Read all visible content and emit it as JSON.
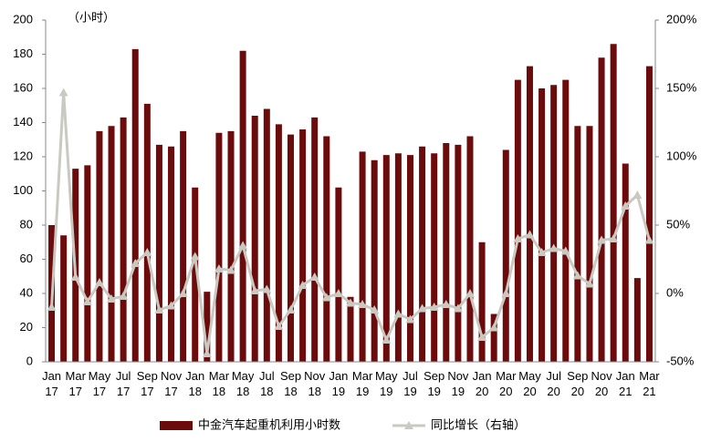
{
  "chart_data": {
    "type": "bar-line",
    "annotation": "（小时）",
    "categories": [
      "Jan 17",
      null,
      "Mar 17",
      null,
      "May 17",
      null,
      "Jul 17",
      null,
      "Sep 17",
      null,
      "Nov 17",
      null,
      "Jan 18",
      null,
      "Mar 18",
      null,
      "May 18",
      null,
      "Jul 18",
      null,
      "Sep 18",
      null,
      "Nov 18",
      null,
      "Jan 19",
      null,
      "Mar 19",
      null,
      "May 19",
      null,
      "Jul 19",
      null,
      "Sep 19",
      null,
      "Nov 19",
      null,
      "Jan 20",
      null,
      "Mar 20",
      null,
      "May 20",
      null,
      "Jul 20",
      null,
      "Sep 20",
      null,
      "Nov 20",
      null,
      "Jan 21",
      null,
      "Mar 21"
    ],
    "series": [
      {
        "name": "中金汽车起重机利用小时数",
        "type": "bar",
        "color": "#6b0b0b",
        "values": [
          80,
          74,
          113,
          115,
          135,
          138,
          143,
          183,
          151,
          127,
          126,
          135,
          102,
          41,
          134,
          135,
          182,
          144,
          148,
          139,
          133,
          136,
          143,
          132,
          102,
          38,
          123,
          118,
          121,
          122,
          121,
          126,
          122,
          128,
          127,
          132,
          70,
          28,
          124,
          165,
          173,
          160,
          162,
          165,
          138,
          138,
          178,
          186,
          116,
          49,
          173
        ]
      },
      {
        "name": "同比增长（右轴）",
        "type": "line",
        "axis": "y2",
        "color": "#c9c9c1",
        "values": [
          -10,
          147,
          12,
          -6,
          8,
          -4,
          -2,
          22,
          30,
          -12,
          -9,
          0,
          27,
          -44,
          18,
          17,
          35,
          2,
          3,
          -24,
          -12,
          6,
          12,
          -3,
          0,
          -7,
          -8,
          -12,
          -34,
          -15,
          -19,
          -11,
          -10,
          -8,
          -11,
          0,
          -32,
          -25,
          0,
          40,
          43,
          30,
          33,
          31,
          13,
          7,
          39,
          40,
          64,
          72,
          39
        ]
      }
    ],
    "ylim": [
      0,
      200
    ],
    "yticks": [
      0,
      20,
      40,
      60,
      80,
      100,
      120,
      140,
      160,
      180,
      200
    ],
    "y2lim": [
      -50,
      200
    ],
    "y2ticks": [
      {
        "value": -50,
        "label": "-50%"
      },
      {
        "value": 0,
        "label": "0%"
      },
      {
        "value": 50,
        "label": "50%"
      },
      {
        "value": 100,
        "label": "100%"
      },
      {
        "value": 150,
        "label": "150%"
      },
      {
        "value": 200,
        "label": "200%"
      }
    ],
    "legend": "bottom"
  }
}
